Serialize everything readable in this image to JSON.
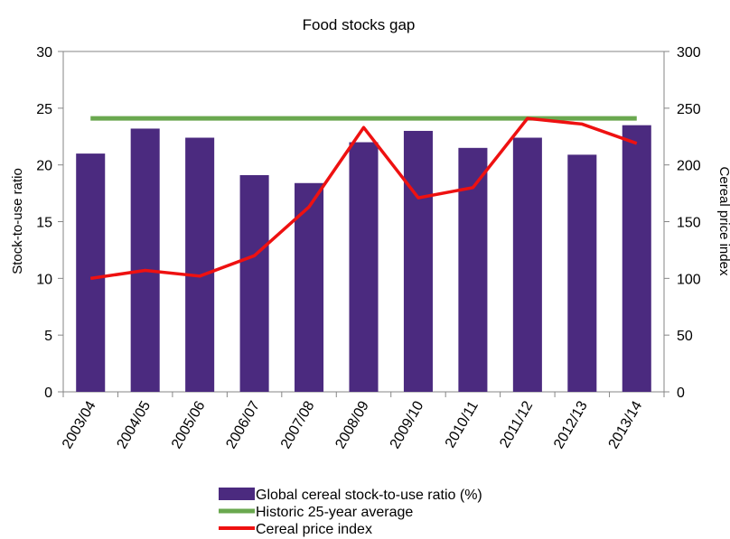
{
  "chart_data": {
    "type": "bar",
    "title": "Food stocks gap",
    "categories": [
      "2003/04",
      "2004/05",
      "2005/06",
      "2006/07",
      "2007/08",
      "2008/09",
      "2009/10",
      "2010/11",
      "2011/12",
      "2012/13",
      "2013/14"
    ],
    "ylabel": "Stock-to-use ratio",
    "y2label": "Cereal price index",
    "ylim": [
      0,
      30
    ],
    "y2lim": [
      0,
      300
    ],
    "yticks": [
      "0",
      "5",
      "10",
      "15",
      "20",
      "25",
      "30"
    ],
    "y2ticks": [
      "0",
      "50",
      "100",
      "150",
      "200",
      "250",
      "300"
    ],
    "grid": false,
    "legend_position": "bottom",
    "series": [
      {
        "name": "Global cereal stock-to-use ratio (%)",
        "type": "bar",
        "axis": "left",
        "color": "#4b2a7f",
        "values": [
          21.0,
          23.2,
          22.4,
          19.1,
          18.4,
          22.0,
          23.0,
          21.5,
          22.4,
          20.9,
          23.5
        ]
      },
      {
        "name": "Historic 25-year average",
        "type": "line",
        "axis": "left",
        "color": "#6aa84f",
        "values": [
          24.1,
          24.1,
          24.1,
          24.1,
          24.1,
          24.1,
          24.1,
          24.1,
          24.1,
          24.1,
          24.1
        ]
      },
      {
        "name": "Cereal price index",
        "type": "line",
        "axis": "right",
        "color": "#ee1111",
        "values": [
          100,
          107,
          102,
          120,
          163,
          233,
          171,
          180,
          241,
          236,
          219
        ]
      }
    ]
  }
}
